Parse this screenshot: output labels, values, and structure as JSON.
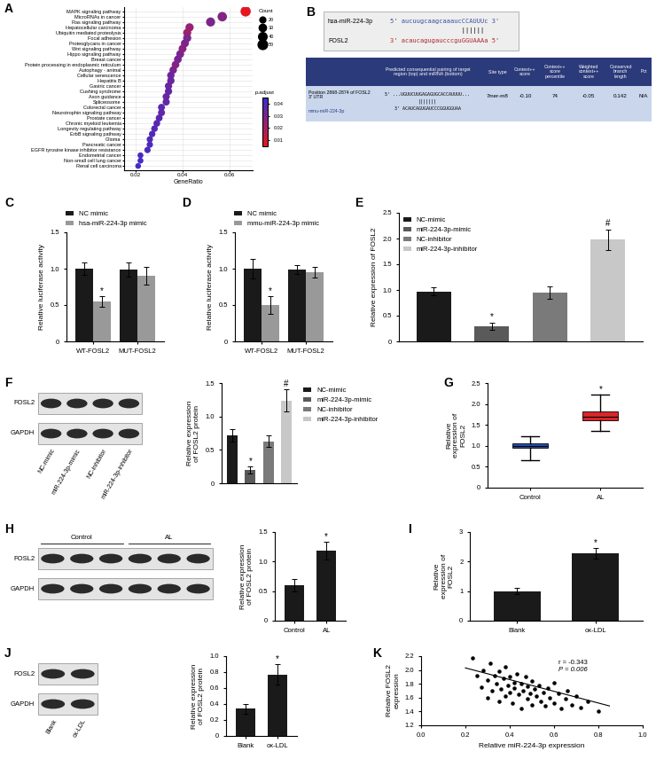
{
  "chart_data": [
    {
      "panel_label": "A",
      "type": "dot",
      "categories": [
        "MAPK signaling pathway",
        "MicroRNAs in cancer",
        "Ras signaling pathway",
        "Hepatocellular carcinoma",
        "Ubiquitin mediated proteolysis",
        "Focal adhesion",
        "Proteoglycans in cancer",
        "Wnt signaling pathway",
        "Hippo signaling pathway",
        "Breast cancer",
        "Protein processing in endoplasmic reticulum",
        "Autophagy - animal",
        "Cellular senescence",
        "Hepatitis B",
        "Gastric cancer",
        "Cushing syndrome",
        "Axon guidance",
        "Spliceosome",
        "Colorectal cancer",
        "Neurotrophin signaling pathway",
        "Prostate cancer",
        "Chronic myeloid leukemia",
        "Longevity regulating pathway",
        "ErbB signaling pathway",
        "Glioma",
        "Pancreatic cancer",
        "EGFR tyrosine kinase inhibitor resistance",
        "Endometrial cancer",
        "Non-small cell lung cancer",
        "Renal cell carcinoma"
      ],
      "values": [
        0.067,
        0.057,
        0.052,
        0.043,
        0.042,
        0.042,
        0.041,
        0.04,
        0.039,
        0.038,
        0.037,
        0.036,
        0.035,
        0.035,
        0.034,
        0.034,
        0.033,
        0.033,
        0.031,
        0.031,
        0.03,
        0.029,
        0.028,
        0.027,
        0.026,
        0.026,
        0.025,
        0.022,
        0.022,
        0.021
      ],
      "counts": [
        58,
        49,
        45,
        37,
        36,
        36,
        35,
        34,
        34,
        33,
        32,
        31,
        30,
        30,
        29,
        29,
        28,
        28,
        27,
        27,
        26,
        25,
        24,
        23,
        22,
        22,
        22,
        19,
        19,
        18
      ],
      "p_adjust": [
        0.006,
        0.028,
        0.03,
        0.024,
        0.022,
        0.03,
        0.03,
        0.026,
        0.03,
        0.032,
        0.028,
        0.03,
        0.034,
        0.034,
        0.034,
        0.036,
        0.035,
        0.035,
        0.038,
        0.036,
        0.038,
        0.038,
        0.039,
        0.04,
        0.04,
        0.041,
        0.041,
        0.042,
        0.042,
        0.043
      ],
      "xlabel": "GeneRatio",
      "xlim": [
        0.015,
        0.07
      ],
      "xticks": [
        0.02,
        0.04,
        0.06
      ],
      "grid": true,
      "size_legend": {
        "title": "Count",
        "values": [
          20,
          30,
          40,
          50
        ]
      },
      "colorbar": {
        "title": "p.adjust",
        "range": [
          0.005,
          0.045
        ],
        "ticks": [
          0.01,
          0.02,
          0.03,
          0.04
        ]
      }
    },
    {
      "panel_label": "C",
      "type": "bar",
      "categories": [
        "WT-FOSL2",
        "MUT-FOSL2"
      ],
      "series": [
        {
          "name": "NC mimic",
          "color": "#1a1a1a",
          "values": [
            1.0,
            0.99
          ],
          "errors": [
            0.09,
            0.1
          ],
          "annotations": [
            null,
            null
          ]
        },
        {
          "name": "hsa-miR-224-3p mimic",
          "color": "#999999",
          "values": [
            0.55,
            0.9
          ],
          "errors": [
            0.07,
            0.12
          ],
          "annotations": [
            "*",
            null
          ]
        }
      ],
      "ylabel": "Relative luciferase activity",
      "ylim": [
        0,
        1.5
      ],
      "yticks": [
        0,
        0.5,
        1.0,
        1.5
      ],
      "legend": "top"
    },
    {
      "panel_label": "D",
      "type": "bar",
      "categories": [
        "WT-FOSL2",
        "MUT-FOSL2"
      ],
      "series": [
        {
          "name": "NC mimic",
          "color": "#1a1a1a",
          "values": [
            1.0,
            0.99
          ],
          "errors": [
            0.13,
            0.06
          ],
          "annotations": [
            null,
            null
          ]
        },
        {
          "name": "mmu-miR-224-3p mimic",
          "color": "#999999",
          "values": [
            0.5,
            0.95
          ],
          "errors": [
            0.12,
            0.07
          ],
          "annotations": [
            "*",
            null
          ]
        }
      ],
      "ylabel": "Relative luciferase activity",
      "ylim": [
        0,
        1.5
      ],
      "yticks": [
        0,
        0.5,
        1.0,
        1.5
      ],
      "legend": "top"
    },
    {
      "panel_label": "E",
      "type": "bar",
      "categories": [
        "NC-mimic",
        "miR-224-3p-mimic",
        "NC-inhibitor",
        "miR-224-3p-inhibitor"
      ],
      "values": [
        0.97,
        0.3,
        0.95,
        1.98
      ],
      "errors": [
        0.08,
        0.07,
        0.12,
        0.2
      ],
      "annotations": [
        null,
        "*",
        null,
        "#"
      ],
      "colors": [
        "#1a1a1a",
        "#5a5a5a",
        "#7a7a7a",
        "#c8c8c8"
      ],
      "ylabel": "Relative expression of FOSL2",
      "ylim": [
        0,
        2.5
      ],
      "yticks": [
        0,
        0.5,
        1.0,
        1.5,
        2.0,
        2.5
      ],
      "legend": "upper left",
      "tick_labels": "y"
    },
    {
      "type": "bar",
      "categories": [
        "NC-mimic",
        "miR-224-3p-mimic",
        "NC-inhibitor",
        "miR-224-3p-inhibitor"
      ],
      "values": [
        0.72,
        0.2,
        0.63,
        1.24
      ],
      "errors": [
        0.09,
        0.05,
        0.09,
        0.17
      ],
      "annotations": [
        null,
        "*",
        null,
        "#"
      ],
      "colors": [
        "#1a1a1a",
        "#5a5a5a",
        "#7a7a7a",
        "#c8c8c8"
      ],
      "ylabel": "Relative expression of FOSL2 protein",
      "ylim": [
        0,
        1.5
      ],
      "yticks": [
        0,
        0.5,
        1.0,
        1.5
      ],
      "legend": "right",
      "tick_labels": "y"
    },
    {
      "panel_label": "G",
      "type": "box",
      "categories": [
        "Control",
        "AL"
      ],
      "boxes": [
        {
          "whislo": 0.65,
          "q1": 0.95,
          "med": 1.0,
          "q3": 1.05,
          "whishi": 1.23
        },
        {
          "whislo": 1.35,
          "q1": 1.6,
          "med": 1.7,
          "q3": 1.82,
          "whishi": 2.22
        }
      ],
      "colors": [
        "#2a4fa8",
        "#d9262a"
      ],
      "annotations": [
        null,
        "*"
      ],
      "ylabel": "Relative expression of FOSL2",
      "ylim": [
        0,
        2.5
      ],
      "yticks": [
        0,
        0.5,
        1.0,
        1.5,
        2.0,
        2.5
      ]
    },
    {
      "type": "bar",
      "categories": [
        "Control",
        "AL"
      ],
      "values": [
        0.6,
        1.19
      ],
      "errors": [
        0.1,
        0.15
      ],
      "annotations": [
        null,
        "*"
      ],
      "color": "#1a1a1a",
      "ylabel": "Relative expression of FOSL2 protein",
      "ylim": [
        0,
        1.5
      ],
      "yticks": [
        0,
        0.5,
        1.0,
        1.5
      ]
    },
    {
      "panel_label": "I",
      "type": "bar",
      "categories": [
        "Blank",
        "ox-LDL"
      ],
      "values": [
        1.0,
        2.27
      ],
      "errors": [
        0.1,
        0.18
      ],
      "annotations": [
        null,
        "*"
      ],
      "color": "#1a1a1a",
      "ylabel": "Relative expression of FOSL2",
      "ylim": [
        0,
        3
      ],
      "yticks": [
        0,
        1,
        2,
        3
      ]
    },
    {
      "type": "bar",
      "categories": [
        "Blank",
        "ox-LDL"
      ],
      "values": [
        0.34,
        0.77
      ],
      "errors": [
        0.06,
        0.13
      ],
      "annotations": [
        null,
        "*"
      ],
      "color": "#1a1a1a",
      "ylabel": "Relative expression of FOSL2 protein",
      "ylim": [
        0,
        1.0
      ],
      "yticks": [
        0,
        0.2,
        0.4,
        0.6,
        0.8,
        1.0
      ]
    },
    {
      "panel_label": "K",
      "type": "scatter",
      "x": [
        0.23,
        0.25,
        0.27,
        0.28,
        0.3,
        0.3,
        0.31,
        0.32,
        0.33,
        0.34,
        0.35,
        0.35,
        0.36,
        0.37,
        0.38,
        0.38,
        0.39,
        0.4,
        0.4,
        0.41,
        0.42,
        0.42,
        0.43,
        0.44,
        0.45,
        0.45,
        0.46,
        0.47,
        0.48,
        0.48,
        0.49,
        0.5,
        0.5,
        0.51,
        0.52,
        0.53,
        0.54,
        0.55,
        0.56,
        0.57,
        0.58,
        0.6,
        0.6,
        0.62,
        0.63,
        0.65,
        0.66,
        0.68,
        0.7,
        0.72,
        0.75,
        0.8
      ],
      "y": [
        2.18,
        1.92,
        1.75,
        2.0,
        1.85,
        1.6,
        2.1,
        1.7,
        1.92,
        1.8,
        1.55,
        1.98,
        1.72,
        1.88,
        1.62,
        2.05,
        1.78,
        1.68,
        1.9,
        1.52,
        1.82,
        1.74,
        1.95,
        1.65,
        1.45,
        1.8,
        1.7,
        1.9,
        1.58,
        1.76,
        1.66,
        1.84,
        1.5,
        1.72,
        1.62,
        1.78,
        1.55,
        1.68,
        1.48,
        1.74,
        1.6,
        1.82,
        1.52,
        1.66,
        1.44,
        1.58,
        1.7,
        1.5,
        1.62,
        1.46,
        1.55,
        1.41
      ],
      "fit_line": {
        "x": [
          0.2,
          0.85
        ],
        "y": [
          2.03,
          1.48
        ]
      },
      "annotations": [
        "r = -0.343",
        "P = 0.006"
      ],
      "color": "#000000",
      "xlabel": "Relative miR-224-3p expression",
      "ylabel": "Relative FOSL2 expression",
      "xlim": [
        0.0,
        1.0
      ],
      "xticks": [
        0.0,
        0.2,
        0.4,
        0.6,
        0.8,
        1.0
      ],
      "ylim": [
        1.2,
        2.2
      ],
      "yticks": [
        1.2,
        1.4,
        1.6,
        1.8,
        2.0,
        2.2
      ]
    }
  ],
  "diagram_B": {
    "panel_label": "B",
    "alignment": {
      "mirna_name": "hsa-miR-224-3p",
      "mirna_seq": "5' aucuugcaagcaaaucCCAUUUc 3'",
      "pairing": "||||||",
      "target_name": "FOSL2",
      "target_seq": "3' acaucagugaucccguGGUAAAa 5'"
    },
    "table": {
      "header": [
        "Predicted consequential pairing of target region (top) and miRNA (bottom)",
        "Site type",
        "Context++ score",
        "Context++ score percentile",
        "Weighted context++ score",
        "Conserved branch length",
        "Pct"
      ],
      "row": [
        [
          "Position 2868-2874 of FOSL2 3' UTR",
          "mmu-miR-224-3p"
        ],
        [
          "5' ...UGUUCUUGAGAGUGCACCAUUUU...",
          "|||||||",
          "3' ACAUCAGUGAUCCCGGUGGUAA"
        ],
        "7mer-m8",
        "-0.10",
        "74",
        "-0.05",
        "0.142",
        "N/A"
      ]
    }
  },
  "blots": [
    {
      "panel_label": "F",
      "rows": [
        "FOSL2",
        "GAPDH"
      ],
      "lanes": [
        "NC-mimic",
        "miR-224-3p-mimic",
        "NC-inhibitor",
        "miR-224-3p-inhibitor"
      ]
    },
    {
      "panel_label": "H",
      "rows": [
        "FOSL2",
        "GAPDH"
      ],
      "groups": [
        {
          "label": "Control",
          "lanes": 3
        },
        {
          "label": "AL",
          "lanes": 3
        }
      ]
    },
    {
      "panel_label": "J",
      "rows": [
        "FOSL2",
        "GAPDH"
      ],
      "lanes": [
        "Blank",
        "ox-LDL"
      ]
    }
  ]
}
